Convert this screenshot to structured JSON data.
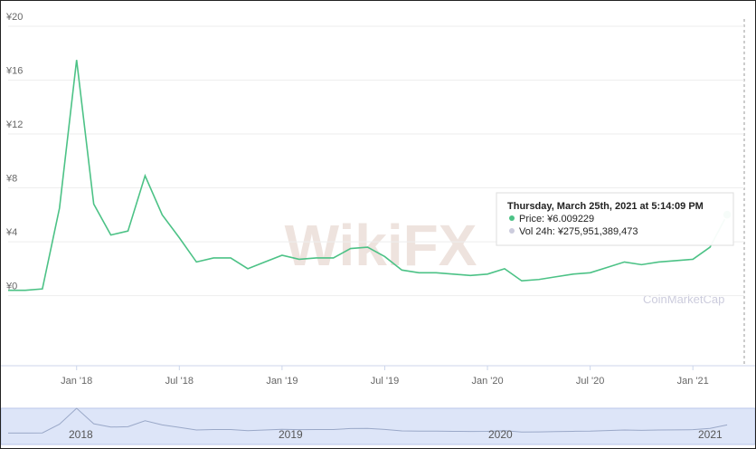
{
  "chart_data": {
    "type": "line",
    "x": [
      "2017-09",
      "2017-10",
      "2017-11",
      "2017-12",
      "2018-01",
      "2018-02",
      "2018-03",
      "2018-04",
      "2018-05",
      "2018-06",
      "2018-07",
      "2018-08",
      "2018-09",
      "2018-10",
      "2018-11",
      "2018-12",
      "2019-01",
      "2019-02",
      "2019-03",
      "2019-04",
      "2019-05",
      "2019-06",
      "2019-07",
      "2019-08",
      "2019-09",
      "2019-10",
      "2019-11",
      "2019-12",
      "2020-01",
      "2020-02",
      "2020-03",
      "2020-04",
      "2020-05",
      "2020-06",
      "2020-07",
      "2020-08",
      "2020-09",
      "2020-10",
      "2020-11",
      "2020-12",
      "2021-01",
      "2021-02",
      "2021-03"
    ],
    "series": [
      {
        "name": "Price",
        "color": "#4cc286",
        "values": [
          0.4,
          0.4,
          0.5,
          6.5,
          17.5,
          6.8,
          4.5,
          4.8,
          8.9,
          6.0,
          4.3,
          2.5,
          2.8,
          2.8,
          2.0,
          2.5,
          3.0,
          2.7,
          2.8,
          2.8,
          3.5,
          3.6,
          2.9,
          1.9,
          1.7,
          1.7,
          1.6,
          1.5,
          1.6,
          2.0,
          1.1,
          1.2,
          1.4,
          1.6,
          1.7,
          2.1,
          2.5,
          2.3,
          2.5,
          2.6,
          2.7,
          3.6,
          6.009229
        ]
      }
    ],
    "xlim": [
      "2017-09",
      "2021-04"
    ],
    "xticks": [
      {
        "value": "2018-01",
        "label": "Jan '18"
      },
      {
        "value": "2018-07",
        "label": "Jul '18"
      },
      {
        "value": "2019-01",
        "label": "Jan '19"
      },
      {
        "value": "2019-07",
        "label": "Jul '19"
      },
      {
        "value": "2020-01",
        "label": "Jan '20"
      },
      {
        "value": "2020-07",
        "label": "Jul '20"
      },
      {
        "value": "2021-01",
        "label": "Jan '21"
      }
    ],
    "ylim": [
      -5,
      20
    ],
    "yticks": [
      {
        "value": 0,
        "label": "¥0"
      },
      {
        "value": 4,
        "label": "¥4"
      },
      {
        "value": 8,
        "label": "¥8"
      },
      {
        "value": 12,
        "label": "¥12"
      },
      {
        "value": 16,
        "label": "¥16"
      },
      {
        "value": 20,
        "label": "¥20"
      }
    ],
    "grid": true,
    "tooltip": {
      "title": "Thursday, March 25th, 2021 at 5:14:09 PM",
      "price": "Price: ¥6.009229",
      "volume": "Vol 24h: ¥275,951,389,473"
    },
    "watermarks": [
      "WikiFX",
      "CoinMarketCap"
    ],
    "navigator_labels": [
      "2018",
      "2019",
      "2020",
      "2021"
    ]
  }
}
